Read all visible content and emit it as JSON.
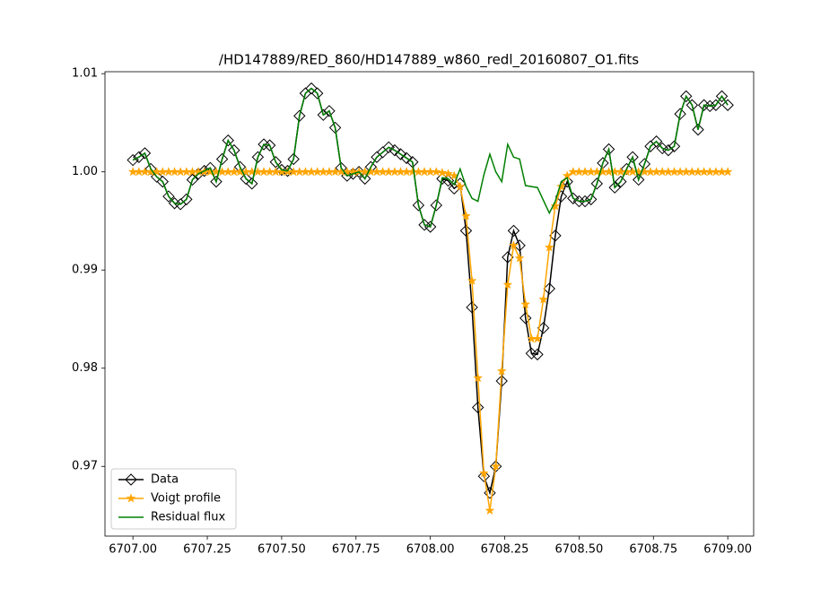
{
  "chart_data": {
    "type": "line",
    "title": "/HD147889/RED_860/HD147889_w860_redl_20160807_O1.fits",
    "x": [
      6707,
      6707.02,
      6707.04,
      6707.06,
      6707.08,
      6707.1,
      6707.12,
      6707.14,
      6707.16,
      6707.18,
      6707.2,
      6707.22,
      6707.24,
      6707.26,
      6707.28,
      6707.3,
      6707.32,
      6707.34,
      6707.36,
      6707.38,
      6707.4,
      6707.42,
      6707.44,
      6707.46,
      6707.48,
      6707.5,
      6707.52,
      6707.54,
      6707.56,
      6707.58,
      6707.6,
      6707.62,
      6707.64,
      6707.66,
      6707.68,
      6707.7,
      6707.72,
      6707.74,
      6707.76,
      6707.78,
      6707.8,
      6707.82,
      6707.84,
      6707.86,
      6707.88,
      6707.9,
      6707.92,
      6707.94,
      6707.96,
      6707.98,
      6708,
      6708.02,
      6708.04,
      6708.06,
      6708.08,
      6708.1,
      6708.12,
      6708.14,
      6708.16,
      6708.18,
      6708.2,
      6708.22,
      6708.24,
      6708.26,
      6708.28,
      6708.3,
      6708.32,
      6708.34,
      6708.36,
      6708.38,
      6708.4,
      6708.42,
      6708.44,
      6708.46,
      6708.48,
      6708.5,
      6708.52,
      6708.54,
      6708.56,
      6708.58,
      6708.6,
      6708.62,
      6708.64,
      6708.66,
      6708.68,
      6708.7,
      6708.72,
      6708.74,
      6708.76,
      6708.78,
      6708.8,
      6708.82,
      6708.84,
      6708.86,
      6708.88,
      6708.9,
      6708.92,
      6708.94,
      6708.96,
      6708.98,
      6709
    ],
    "series": [
      {
        "name": "Data",
        "color": "#000000",
        "marker": "diamond",
        "values": [
          1.0012,
          1.0015,
          1.0019,
          1.0003,
          0.9995,
          0.999,
          0.9975,
          0.9968,
          0.9967,
          0.9972,
          0.9992,
          0.9998,
          1.0001,
          1.0004,
          0.999,
          1.0013,
          1.0032,
          1.0022,
          1.0005,
          0.9993,
          0.9988,
          1.0015,
          1.0028,
          1.0027,
          1.001,
          1.0002,
          1.0001,
          1.0013,
          1.0057,
          1.008,
          1.0085,
          1.008,
          1.0058,
          1.0062,
          1.0045,
          1.0004,
          0.9996,
          0.9998,
          1.0,
          0.9993,
          1.0005,
          1.0015,
          1.002,
          1.0025,
          1.0022,
          1.0018,
          1.0014,
          1.001,
          0.9966,
          0.9946,
          0.9944,
          0.9966,
          0.9993,
          0.9991,
          0.9983,
          0.9988,
          0.994,
          0.9862,
          0.976,
          0.969,
          0.9673,
          0.97,
          0.9787,
          0.9913,
          0.994,
          0.9925,
          0.9851,
          0.9815,
          0.9814,
          0.9841,
          0.9881,
          0.9935,
          0.9975,
          0.999,
          0.9973,
          0.997,
          0.997,
          0.9972,
          0.9988,
          1.0009,
          1.0023,
          0.9984,
          0.999,
          1.0003,
          1.0015,
          0.9992,
          1.0008,
          1.0026,
          1.0031,
          1.0024,
          1.0022,
          1.0026,
          1.0059,
          1.0077,
          1.0068,
          1.0043,
          1.0068,
          1.0067,
          1.0068,
          1.0077,
          1.0068
        ]
      },
      {
        "name": "Voigt profile",
        "color": "#ffa500",
        "marker": "star",
        "values": [
          1,
          1,
          1,
          1,
          1,
          1,
          1,
          1,
          1,
          1,
          1,
          1,
          1,
          1,
          1,
          1,
          1,
          1,
          1,
          1,
          1,
          1,
          1,
          1,
          1,
          1,
          1,
          1,
          1,
          1,
          1,
          1,
          1,
          1,
          1,
          1,
          1,
          1,
          1,
          1,
          1,
          1,
          1,
          1,
          1,
          1,
          1,
          1,
          1,
          1,
          1,
          1,
          0.9999,
          0.9998,
          0.9996,
          0.9985,
          0.9955,
          0.9889,
          0.979,
          0.9693,
          0.9655,
          0.97,
          0.9797,
          0.9885,
          0.9925,
          0.9912,
          0.9865,
          0.983,
          0.983,
          0.987,
          0.9923,
          0.9965,
          0.9985,
          0.9996,
          1,
          1,
          1,
          1,
          1,
          1,
          1,
          1,
          1,
          1,
          1,
          1,
          1,
          1,
          1,
          1,
          1,
          1,
          1,
          1,
          1,
          1,
          1,
          1,
          1,
          1,
          1
        ]
      },
      {
        "name": "Residual flux",
        "color": "#008000",
        "marker": "none",
        "values": [
          1.0012,
          1.0015,
          1.0019,
          1.0003,
          0.9995,
          0.999,
          0.9975,
          0.9968,
          0.9967,
          0.9972,
          0.9992,
          0.9998,
          1.0001,
          1.0004,
          0.999,
          1.0013,
          1.0032,
          1.0022,
          1.0005,
          0.9993,
          0.9988,
          1.0015,
          1.0028,
          1.0027,
          1.001,
          1.0002,
          1.0001,
          1.0013,
          1.0057,
          1.008,
          1.0085,
          1.008,
          1.0058,
          1.0062,
          1.0045,
          1.0004,
          0.9996,
          0.9998,
          1.0,
          0.9993,
          1.0005,
          1.0015,
          1.002,
          1.0025,
          1.0022,
          1.0018,
          1.0014,
          1.001,
          0.9966,
          0.9946,
          0.9944,
          0.9966,
          0.9994,
          0.9993,
          0.9987,
          1.0003,
          0.9985,
          0.9973,
          0.997,
          0.9997,
          1.0018,
          1.0,
          0.999,
          1.0028,
          1.0015,
          1.0013,
          0.9986,
          0.9985,
          0.9984,
          0.9971,
          0.9958,
          0.997,
          0.999,
          0.9994,
          0.9973,
          0.997,
          0.997,
          0.9972,
          0.9988,
          1.0009,
          1.0023,
          0.9984,
          0.999,
          1.0003,
          1.0015,
          0.9992,
          1.0008,
          1.0026,
          1.0031,
          1.0024,
          1.0022,
          1.0026,
          1.0059,
          1.0077,
          1.0068,
          1.0043,
          1.0068,
          1.0067,
          1.0068,
          1.0077,
          1.0068
        ]
      }
    ],
    "xlim": [
      6706.906,
      6709.087
    ],
    "ylim": [
      0.9629,
      1.0102
    ],
    "xticks": [
      {
        "value": 6707,
        "label": "6707.00"
      },
      {
        "value": 6707.25,
        "label": "6707.25"
      },
      {
        "value": 6707.5,
        "label": "6707.50"
      },
      {
        "value": 6707.75,
        "label": "6707.75"
      },
      {
        "value": 6708,
        "label": "6708.00"
      },
      {
        "value": 6708.25,
        "label": "6708.25"
      },
      {
        "value": 6708.5,
        "label": "6708.50"
      },
      {
        "value": 6708.75,
        "label": "6708.75"
      },
      {
        "value": 6709,
        "label": "6709.00"
      }
    ],
    "yticks": [
      0.97,
      0.98,
      0.99,
      {
        "value": 1,
        "label": "1.00"
      },
      1.01
    ],
    "grid": false,
    "legend": "lower left"
  }
}
